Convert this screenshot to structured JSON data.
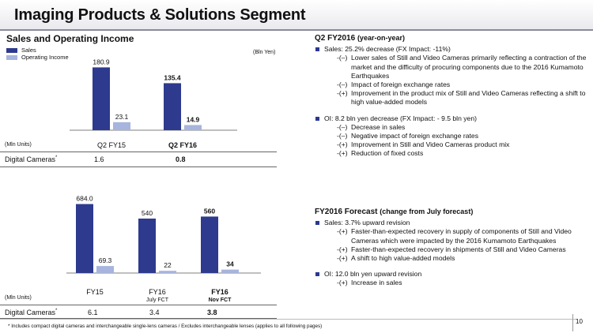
{
  "page": {
    "title": "Imaging Products & Solutions Segment",
    "page_number": "10",
    "footnote": "* Includes compact digital cameras and interchangeable single-lens cameras / Excludes interchangeable lenses (applies to all following pages)"
  },
  "left": {
    "chart_title": "Sales and Operating Income",
    "legend": {
      "sales": "Sales",
      "oi": "Operating Income"
    },
    "unit_bln": "(Bln Yen)",
    "top_table": {
      "mln_units": "(Mln Units)",
      "row_label": "Digital Cameras",
      "row_mark": "*",
      "values": [
        "1.6",
        "0.8"
      ]
    },
    "bottom_table": {
      "mln_units": "(Mln Units)",
      "row_label": "Digital Cameras",
      "row_mark": "*",
      "values": [
        "6.1",
        "3.4",
        "3.8"
      ]
    }
  },
  "colors": {
    "sales": "#2e3a8e",
    "oi": "#a7b4dd"
  },
  "chart_data": [
    {
      "type": "bar",
      "categories": [
        "Q2 FY15",
        "Q2 FY16"
      ],
      "category_lines": [
        [
          "Q2 FY15"
        ],
        [
          "Q2 FY16"
        ]
      ],
      "bold_categories": [
        false,
        true
      ],
      "series": [
        {
          "name": "Sales",
          "values": [
            180.9,
            135.4
          ],
          "labels": [
            "180.9",
            "135.4"
          ],
          "bold_labels": [
            false,
            true
          ]
        },
        {
          "name": "Operating Income",
          "values": [
            23.1,
            14.9
          ],
          "labels": [
            "23.1",
            "14.9"
          ],
          "bold_labels": [
            false,
            true
          ]
        }
      ],
      "ylabel": "(Bln Yen)",
      "legend": "top-left",
      "grid": false
    },
    {
      "type": "bar",
      "categories": [
        "FY15",
        "FY16 July FCT",
        "FY16 Nov FCT"
      ],
      "category_lines": [
        [
          "FY15"
        ],
        [
          "FY16",
          "July FCT"
        ],
        [
          "FY16",
          "Nov FCT"
        ]
      ],
      "bold_categories": [
        false,
        false,
        true
      ],
      "series": [
        {
          "name": "Sales",
          "values": [
            684.0,
            540,
            560
          ],
          "labels": [
            "684.0",
            "540",
            "560"
          ],
          "bold_labels": [
            false,
            false,
            true
          ]
        },
        {
          "name": "Operating Income",
          "values": [
            69.3,
            22,
            34
          ],
          "labels": [
            "69.3",
            "22",
            "34"
          ],
          "bold_labels": [
            false,
            false,
            true
          ]
        }
      ],
      "legend": "none",
      "grid": false
    }
  ],
  "q2": {
    "title": "Q2 FY2016",
    "title_paren": "(year-on-year)",
    "bullets": [
      {
        "text": "Sales: 25.2% decrease (FX Impact:  -11%)",
        "items": [
          {
            "mark": "-(–)",
            "text": "Lower sales of Still and Video Cameras primarily reflecting a contraction of the market and the difficulty of procuring components due to the 2016 Kumamoto Earthquakes"
          },
          {
            "mark": "-(–)",
            "text": "Impact of foreign exchange rates"
          },
          {
            "mark": "-(+)",
            "text": "Improvement in the product mix of Still and Video Cameras reflecting a shift to high value-added models"
          }
        ]
      },
      {
        "text": "OI: 8.2 bln yen decrease (FX Impact: - 9.5 bln yen)",
        "items": [
          {
            "mark": "-(–)",
            "text": "Decrease in sales"
          },
          {
            "mark": "-(–)",
            "text": "Negative impact of foreign exchange rates"
          },
          {
            "mark": "-(+)",
            "text": "Improvement in Still and Video Cameras product mix"
          },
          {
            "mark": "-(+)",
            "text": "Reduction of fixed costs"
          }
        ]
      }
    ]
  },
  "fy": {
    "title": "FY2016 Forecast",
    "title_paren": "(change from July forecast)",
    "bullets": [
      {
        "text": "Sales: 3.7% upward revision",
        "items": [
          {
            "mark": "-(+)",
            "text": "Faster-than-expected recovery in supply of components of Still and Video Cameras which were impacted by the 2016 Kumamoto Earthquakes"
          },
          {
            "mark": "-(+)",
            "text": "Faster-than-expected recovery in shipments of Still and Video Cameras"
          },
          {
            "mark": "-(+)",
            "text": "A shift to high value-added models"
          }
        ]
      },
      {
        "text": "OI: 12.0 bln yen upward revision",
        "items": [
          {
            "mark": "-(+)",
            "text": "Increase in sales"
          }
        ]
      }
    ]
  }
}
